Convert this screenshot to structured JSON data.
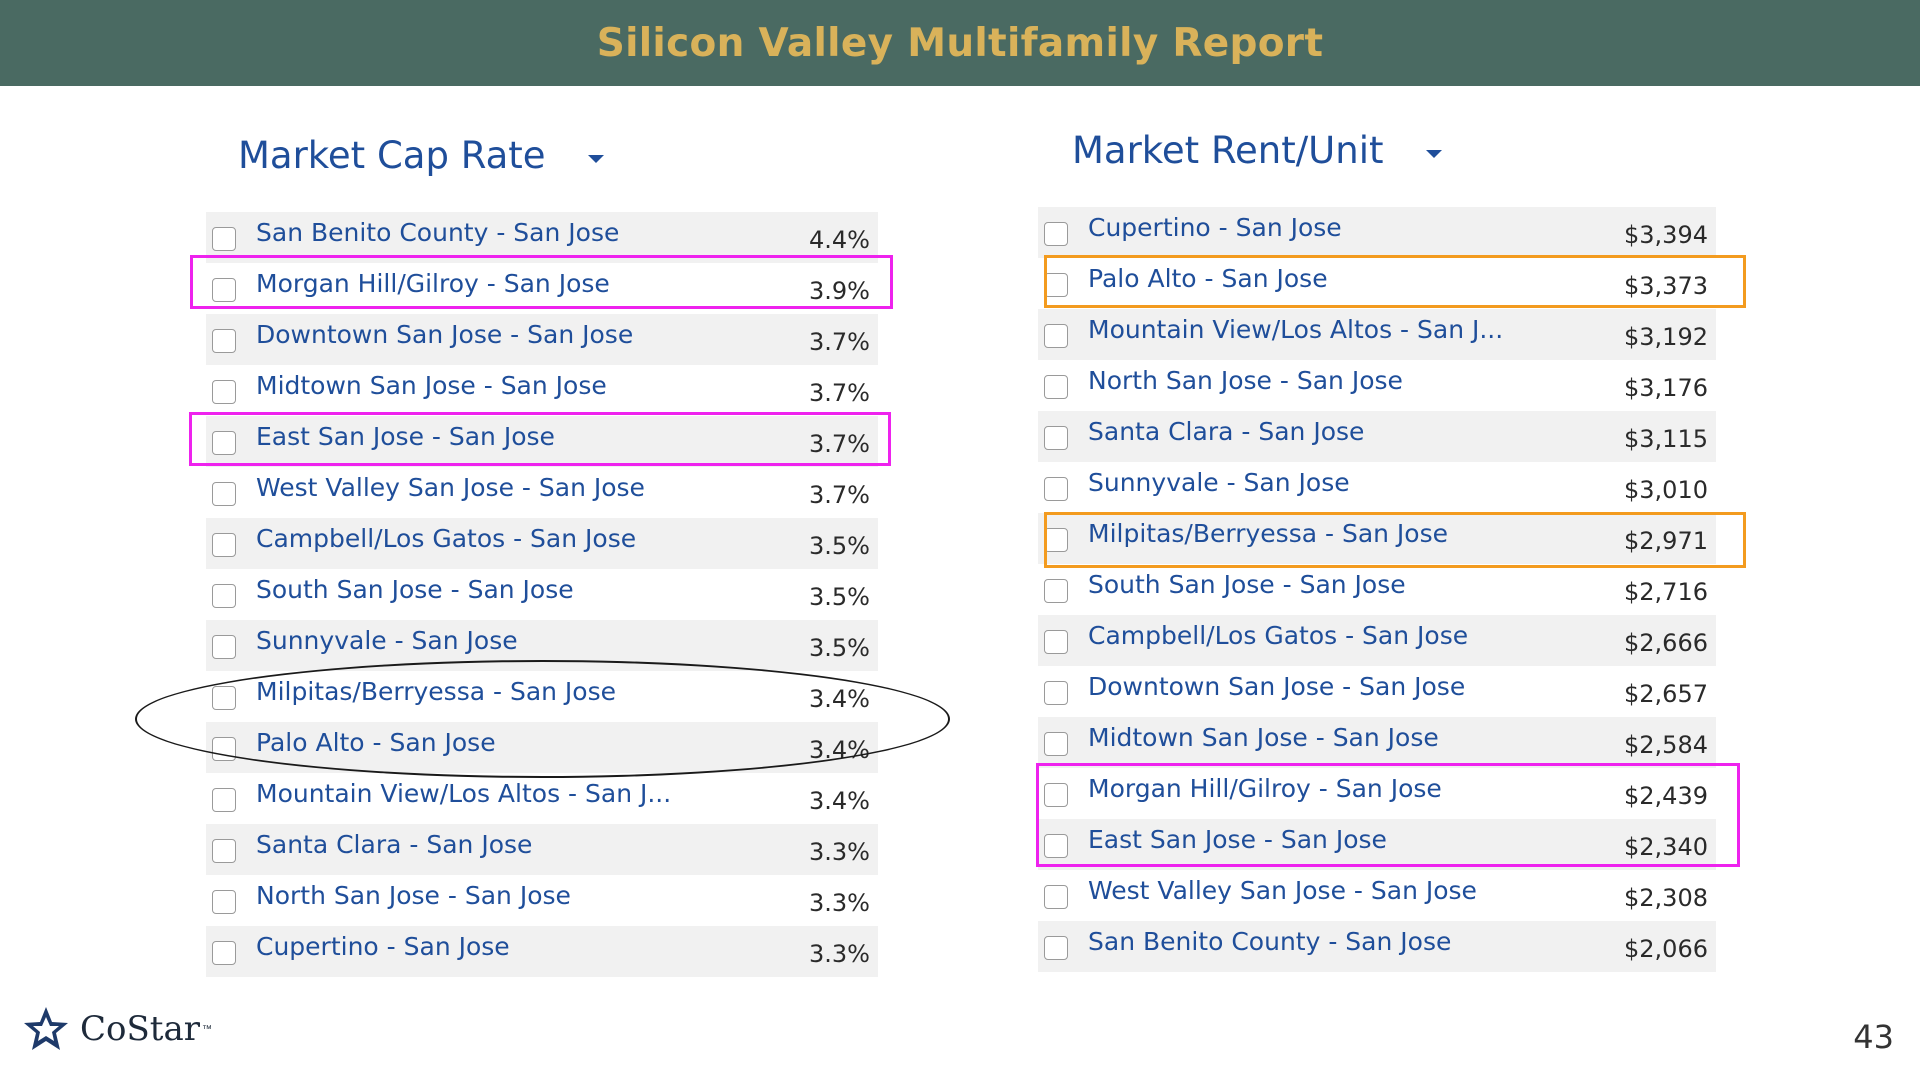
{
  "header": {
    "title": "Silicon Valley Multifamily Report"
  },
  "left_panel": {
    "title": "Market Cap Rate",
    "rows": [
      {
        "label": "San Benito County - San Jose",
        "value": "4.4%"
      },
      {
        "label": "Morgan Hill/Gilroy - San Jose",
        "value": "3.9%"
      },
      {
        "label": "Downtown San Jose - San Jose",
        "value": "3.7%"
      },
      {
        "label": "Midtown San Jose - San Jose",
        "value": "3.7%"
      },
      {
        "label": "East San Jose - San Jose",
        "value": "3.7%"
      },
      {
        "label": "West Valley San Jose - San Jose",
        "value": "3.7%"
      },
      {
        "label": "Campbell/Los Gatos - San Jose",
        "value": "3.5%"
      },
      {
        "label": "South San Jose - San Jose",
        "value": "3.5%"
      },
      {
        "label": "Sunnyvale - San Jose",
        "value": "3.5%"
      },
      {
        "label": "Milpitas/Berryessa - San Jose",
        "value": "3.4%"
      },
      {
        "label": "Palo Alto - San Jose",
        "value": "3.4%"
      },
      {
        "label": "Mountain View/Los Altos - San J...",
        "value": "3.4%"
      },
      {
        "label": "Santa Clara - San Jose",
        "value": "3.3%"
      },
      {
        "label": "North San Jose - San Jose",
        "value": "3.3%"
      },
      {
        "label": "Cupertino - San Jose",
        "value": "3.3%"
      }
    ]
  },
  "right_panel": {
    "title": "Market Rent/Unit",
    "rows": [
      {
        "label": "Cupertino - San Jose",
        "value": "$3,394"
      },
      {
        "label": "Palo Alto - San Jose",
        "value": "$3,373"
      },
      {
        "label": "Mountain View/Los Altos - San J...",
        "value": "$3,192"
      },
      {
        "label": "North San Jose - San Jose",
        "value": "$3,176"
      },
      {
        "label": "Santa Clara - San Jose",
        "value": "$3,115"
      },
      {
        "label": "Sunnyvale - San Jose",
        "value": "$3,010"
      },
      {
        "label": "Milpitas/Berryessa - San Jose",
        "value": "$2,971"
      },
      {
        "label": "South San Jose - San Jose",
        "value": "$2,716"
      },
      {
        "label": "Campbell/Los Gatos - San Jose",
        "value": "$2,666"
      },
      {
        "label": "Downtown San Jose - San Jose",
        "value": "$2,657"
      },
      {
        "label": "Midtown San Jose - San Jose",
        "value": "$2,584"
      },
      {
        "label": "Morgan Hill/Gilroy - San Jose",
        "value": "$2,439"
      },
      {
        "label": "East San Jose - San Jose",
        "value": "$2,340"
      },
      {
        "label": "West Valley San Jose - San Jose",
        "value": "$2,308"
      },
      {
        "label": "San Benito County - San Jose",
        "value": "$2,066"
      }
    ]
  },
  "highlight_colors": {
    "magenta": "#ee22ee",
    "orange": "#f39b1f",
    "oval": "#1a1a1a"
  },
  "footer": {
    "brand": "CoStar",
    "trademark": "™",
    "page_number": "43"
  }
}
